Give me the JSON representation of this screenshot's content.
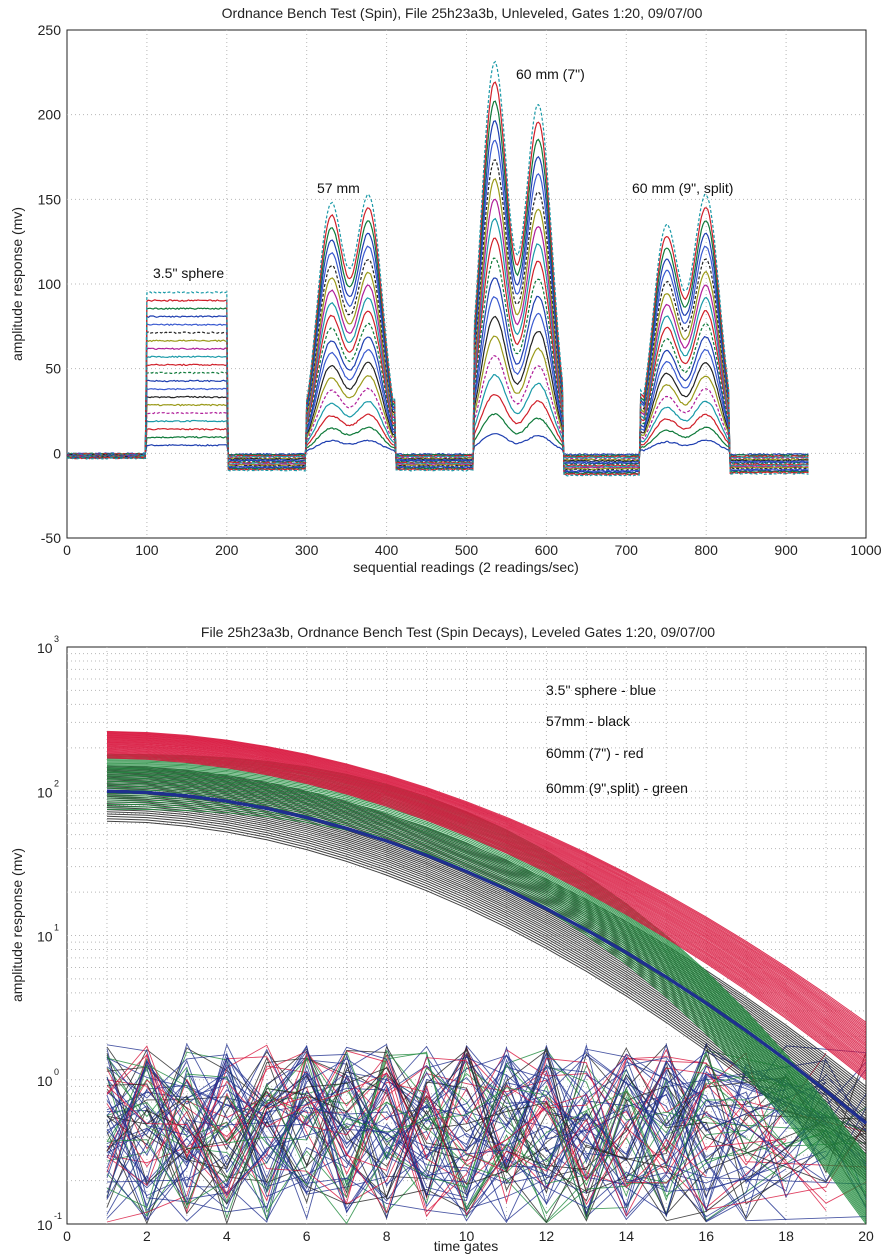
{
  "chart_data": [
    {
      "type": "line",
      "title": "Ordnance Bench Test (Spin), File 25h23a3b, Unleveled, Gates 1:20, 09/07/00",
      "xlabel": "sequential readings (2 readings/sec)",
      "ylabel": "amplitude response (mv)",
      "xlim": [
        0,
        1000
      ],
      "ylim": [
        -50,
        250
      ],
      "xticks": [
        "0",
        "100",
        "200",
        "300",
        "400",
        "500",
        "600",
        "700",
        "800",
        "900",
        "1000"
      ],
      "yticks": [
        "-50",
        "0",
        "50",
        "100",
        "150",
        "200",
        "250"
      ],
      "grid": true,
      "annotations": [
        {
          "text": "3.5\" sphere",
          "x": 100,
          "y": 115
        },
        {
          "text": "57 mm",
          "x": 325,
          "y": 173
        },
        {
          "text": "60 mm (7\")",
          "x": 545,
          "y": 248
        },
        {
          "text": "60 mm (9\", split)",
          "x": 730,
          "y": 173
        }
      ],
      "segments": [
        {
          "name": "3.5\" sphere",
          "x": [
            100,
            200
          ],
          "peak": 95
        },
        {
          "name": "57 mm",
          "x": [
            300,
            410
          ],
          "peaks": [
            {
              "x": 330,
              "y": 145
            },
            {
              "x": 378,
              "y": 150
            }
          ],
          "shoulder": 47
        },
        {
          "name": "60 mm (7\")",
          "x": [
            510,
            620
          ],
          "peaks": [
            {
              "x": 535,
              "y": 230
            },
            {
              "x": 590,
              "y": 205
            }
          ],
          "shoulder": 52
        },
        {
          "name": "60 mm (9\", split)",
          "x": [
            718,
            828
          ],
          "peaks": [
            {
              "x": 750,
              "y": 133
            },
            {
              "x": 800,
              "y": 151
            }
          ],
          "shoulder": 53
        }
      ],
      "series_colors": [
        "#1f3fb0",
        "#0f7a3a",
        "#d0202a",
        "#1a9aa8",
        "#b0209a",
        "#9a9a1a",
        "#222222",
        "#3a5ad0"
      ]
    },
    {
      "type": "line",
      "log_y": true,
      "title": "File 25h23a3b, Ordnance Bench Test (Spin Decays), Leveled Gates 1:20, 09/07/00",
      "xlabel": "time gates",
      "ylabel": "amplitude response (mv)",
      "xlim": [
        0,
        20
      ],
      "ylim": [
        0.1,
        1000
      ],
      "xticks": [
        "0",
        "2",
        "4",
        "6",
        "8",
        "10",
        "12",
        "14",
        "16",
        "18",
        "20"
      ],
      "yticks": [
        {
          "base": "10",
          "exp": "3"
        },
        {
          "base": "10",
          "exp": "2"
        },
        {
          "base": "10",
          "exp": "1"
        },
        {
          "base": "10",
          "exp": "0"
        },
        {
          "base": "10",
          "exp": "-1"
        }
      ],
      "grid": true,
      "legend_text": [
        "3.5\" sphere - blue",
        "57mm - black",
        "60mm (7\") - red",
        "60mm (9\",split) - green"
      ],
      "legend_position": "top-right",
      "series": [
        {
          "color": "#1f2f8f",
          "x": [
            1,
            20
          ],
          "start": 100,
          "end": 0.5
        },
        {
          "color": "#222222",
          "x": [
            1,
            20
          ],
          "start_range": [
            62,
            150
          ],
          "end_range": [
            0.2,
            0.9
          ]
        },
        {
          "color": "#d8143c",
          "x": [
            1,
            20
          ],
          "start_range": [
            170,
            260
          ],
          "end_range": [
            1,
            2.5
          ]
        },
        {
          "color": "#1f8a3c",
          "x": [
            1,
            20
          ],
          "start_range": [
            75,
            180
          ],
          "end_range": [
            0.1,
            0.3
          ]
        }
      ]
    }
  ]
}
